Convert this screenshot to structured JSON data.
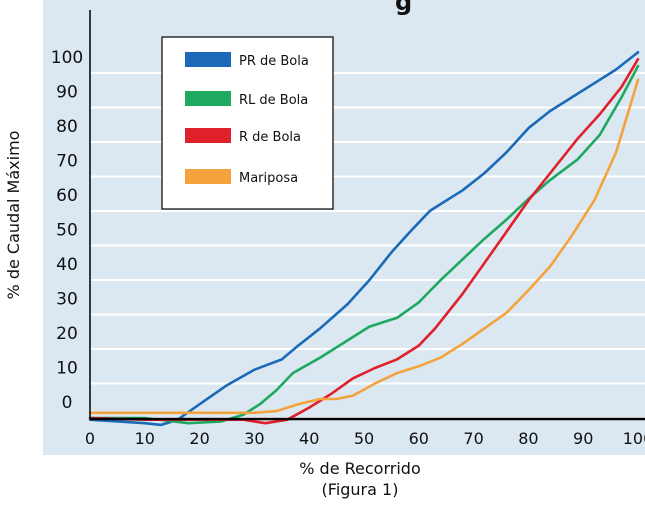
{
  "chart_data": {
    "type": "line",
    "title_fragment": "g",
    "xlabel": "% de Recorrido",
    "caption": "(Figura 1)",
    "ylabel": "% de Caudal Máximo",
    "xlim": [
      0,
      100
    ],
    "ylim": [
      -7,
      108
    ],
    "x_ticks": [
      "0",
      "10",
      "20",
      "30",
      "40",
      "50",
      "60",
      "70",
      "80",
      "90",
      "100"
    ],
    "y_ticks": [
      "0",
      "10",
      "20",
      "30",
      "40",
      "50",
      "60",
      "70",
      "80",
      "90",
      "100"
    ],
    "grid": true,
    "legend": "top-left",
    "series": [
      {
        "name": "PR de Bola",
        "color": "#1a6ab8",
        "x": [
          0,
          10,
          13,
          16,
          20,
          25,
          30,
          35,
          38,
          42,
          47,
          51,
          55,
          59,
          62,
          63,
          68,
          72,
          76,
          80,
          84,
          88,
          92,
          96,
          100
        ],
        "y": [
          -0.5,
          -1.5,
          -2,
          -0.5,
          4,
          9.5,
          14,
          17,
          21,
          26,
          33,
          40,
          48,
          55,
          60,
          61,
          66,
          71,
          77,
          84,
          89,
          93,
          97,
          101,
          106
        ]
      },
      {
        "name": "RL de Bola",
        "color": "#1fa85f",
        "x": [
          0,
          10,
          18,
          24,
          28,
          31,
          34,
          37,
          42,
          47,
          51,
          53,
          56,
          60,
          64,
          68,
          72,
          76,
          80,
          84,
          89,
          93,
          97,
          100
        ],
        "y": [
          0,
          0,
          -1.5,
          -1,
          1,
          4,
          8,
          13,
          17.5,
          22.5,
          26.5,
          27.5,
          29,
          33.5,
          40,
          46,
          52,
          57.5,
          63.5,
          69,
          75,
          82,
          93,
          102
        ]
      },
      {
        "name": "R de Bola",
        "color": "#e0202a",
        "x": [
          0,
          10,
          20,
          28,
          32,
          36,
          40,
          44,
          48,
          52,
          56,
          60,
          63,
          68,
          72,
          76,
          80,
          84,
          89,
          93,
          97,
          100
        ],
        "y": [
          0,
          -0.5,
          -0.5,
          -0.5,
          -1.5,
          -0.5,
          3,
          7,
          11.5,
          14.5,
          17,
          21,
          26,
          36,
          45,
          54,
          63,
          71,
          81,
          88,
          96,
          104
        ]
      },
      {
        "name": "Mariposa",
        "color": "#f4a33c",
        "x": [
          0,
          10,
          20,
          30,
          34,
          38,
          42,
          45,
          48,
          52,
          56,
          60,
          64,
          68,
          72,
          76,
          80,
          84,
          88,
          92,
          96,
          100
        ],
        "y": [
          1.5,
          1.5,
          1.5,
          1.5,
          2,
          4,
          5.5,
          5.5,
          6.5,
          10,
          13,
          15,
          17.5,
          21.5,
          26,
          30.5,
          37,
          44,
          53,
          63,
          77,
          98
        ]
      }
    ]
  }
}
